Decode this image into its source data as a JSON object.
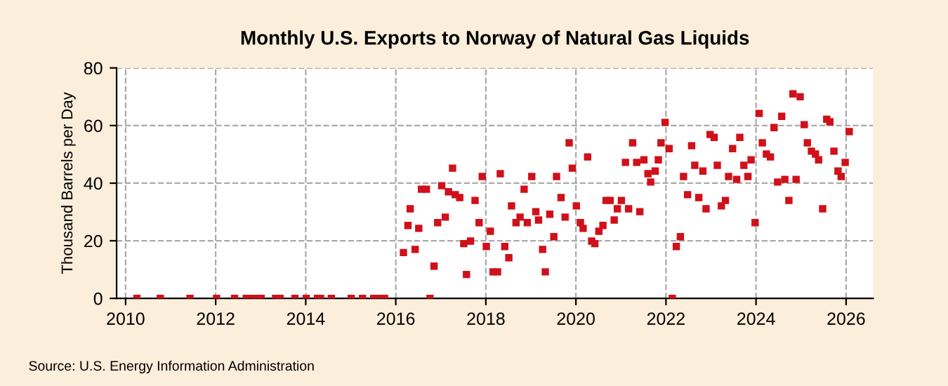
{
  "chart_data": {
    "type": "scatter",
    "title": "Monthly U.S. Exports to Norway of Natural Gas Liquids",
    "ylabel": "Thousand Barrels per Day",
    "annotations": [
      "Source: U.S. Energy Information Administration"
    ],
    "x": [
      2010.25,
      2010.77,
      2011.43,
      2012.02,
      2012.42,
      2012.68,
      2012.83,
      2012.91,
      2013.01,
      2013.33,
      2013.43,
      2013.76,
      2014.01,
      2014.26,
      2014.33,
      2014.57,
      2015.01,
      2015.26,
      2015.51,
      2015.63,
      2015.75,
      2016.17,
      2016.27,
      2016.32,
      2016.43,
      2016.51,
      2016.57,
      2016.68,
      2016.76,
      2016.85,
      2016.93,
      2017.02,
      2017.1,
      2017.17,
      2017.26,
      2017.32,
      2017.42,
      2017.51,
      2017.57,
      2017.66,
      2017.76,
      2017.85,
      2017.92,
      2018.01,
      2018.1,
      2018.16,
      2018.26,
      2018.32,
      2018.42,
      2018.51,
      2018.57,
      2018.67,
      2018.76,
      2018.85,
      2018.92,
      2019.02,
      2019.11,
      2019.17,
      2019.26,
      2019.32,
      2019.42,
      2019.51,
      2019.57,
      2019.67,
      2019.76,
      2019.85,
      2019.92,
      2020.01,
      2020.1,
      2020.16,
      2020.26,
      2020.35,
      2020.42,
      2020.51,
      2020.6,
      2020.67,
      2020.76,
      2020.85,
      2020.92,
      2021.01,
      2021.1,
      2021.17,
      2021.26,
      2021.35,
      2021.42,
      2021.51,
      2021.6,
      2021.66,
      2021.76,
      2021.83,
      2021.89,
      2021.98,
      2022.07,
      2022.14,
      2022.23,
      2022.32,
      2022.39,
      2022.48,
      2022.57,
      2022.64,
      2022.73,
      2022.82,
      2022.89,
      2022.98,
      2023.07,
      2023.14,
      2023.23,
      2023.32,
      2023.39,
      2023.48,
      2023.57,
      2023.64,
      2023.73,
      2023.82,
      2023.89,
      2023.98,
      2024.07,
      2024.14,
      2024.23,
      2024.32,
      2024.4,
      2024.48,
      2024.57,
      2024.64,
      2024.73,
      2024.82,
      2024.89,
      2024.98,
      2025.07,
      2025.14,
      2025.23,
      2025.32,
      2025.39,
      2025.48,
      2025.57,
      2025.64,
      2025.73,
      2025.82,
      2025.89,
      2025.98,
      2026.07
    ],
    "values": [
      0,
      0,
      0,
      0,
      0,
      0,
      0,
      0,
      0,
      0,
      0,
      0,
      0,
      0,
      0,
      0,
      0,
      0,
      0,
      0,
      0,
      15.9,
      25.3,
      31.1,
      17.0,
      24.3,
      37.9,
      37.9,
      0,
      11.2,
      26.3,
      39.1,
      28.2,
      37.0,
      45.2,
      36.0,
      35.0,
      19.0,
      8.3,
      19.9,
      34.0,
      26.3,
      42.3,
      18.0,
      23.3,
      9.2,
      9.2,
      43.3,
      18.0,
      14.1,
      32.1,
      26.3,
      28.2,
      37.9,
      26.3,
      42.3,
      30.1,
      27.2,
      17.0,
      9.2,
      29.2,
      21.4,
      42.3,
      35.0,
      28.2,
      54.0,
      45.2,
      32.1,
      26.3,
      24.3,
      49.1,
      19.9,
      19.0,
      23.3,
      25.3,
      34.0,
      34.0,
      27.2,
      31.1,
      34.0,
      47.2,
      31.1,
      54.0,
      47.2,
      30.1,
      48.1,
      43.3,
      40.4,
      44.2,
      48.1,
      54.0,
      61.1,
      52.0,
      0,
      18.0,
      21.4,
      42.3,
      36.0,
      53.0,
      46.2,
      35.0,
      44.2,
      31.1,
      56.9,
      55.9,
      46.2,
      32.1,
      34.0,
      42.3,
      52.0,
      41.3,
      55.9,
      46.2,
      42.3,
      48.1,
      26.3,
      64.2,
      54.0,
      50.1,
      49.1,
      59.3,
      40.4,
      63.2,
      41.3,
      34.0,
      71.0,
      41.3,
      70.0,
      60.3,
      54.0,
      51.1,
      50.1,
      48.1,
      31.1,
      62.2,
      61.3,
      51.1,
      44.2,
      42.3,
      47.2,
      57.9
    ],
    "color": "#d0101a",
    "marker": "square",
    "xlim": [
      2009.8,
      2026.6
    ],
    "xticks": [
      2010,
      2012,
      2014,
      2016,
      2018,
      2020,
      2022,
      2024,
      2026
    ],
    "ylim": [
      0,
      80
    ],
    "yticks": [
      0,
      20,
      40,
      60,
      80
    ],
    "grid": true
  }
}
